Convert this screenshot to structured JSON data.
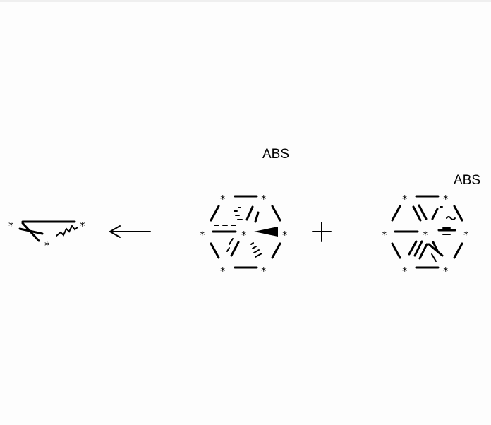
{
  "labels": {
    "abs_center": "ABS",
    "abs_right": "ABS"
  },
  "atom_marker": "*",
  "symbols": {
    "arrow": "reaction-arrow-left",
    "plus": "+"
  }
}
